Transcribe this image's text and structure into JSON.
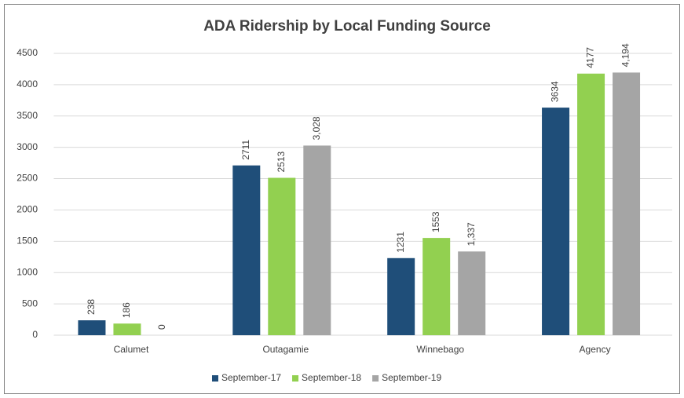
{
  "chart_data": {
    "type": "bar",
    "title": "ADA Ridership by Local Funding Source",
    "categories": [
      "Calumet",
      "Outagamie",
      "Winnebago",
      "Agency"
    ],
    "series": [
      {
        "name": "September-17",
        "color": "#1f4e79",
        "values": [
          238,
          2711,
          1231,
          3634
        ]
      },
      {
        "name": "September-18",
        "color": "#92d050",
        "values": [
          186,
          2513,
          1553,
          4177
        ]
      },
      {
        "name": "September-19",
        "color": "#a5a5a5",
        "values": [
          0,
          3028,
          1337,
          4194
        ],
        "value_labels": [
          "0",
          "3,028",
          "1,337",
          "4,194"
        ]
      }
    ],
    "ylim": [
      0,
      4500
    ],
    "yticks": [
      0,
      500,
      1000,
      1500,
      2000,
      2500,
      3000,
      3500,
      4000,
      4500
    ],
    "grid": true,
    "legend": "bottom"
  }
}
